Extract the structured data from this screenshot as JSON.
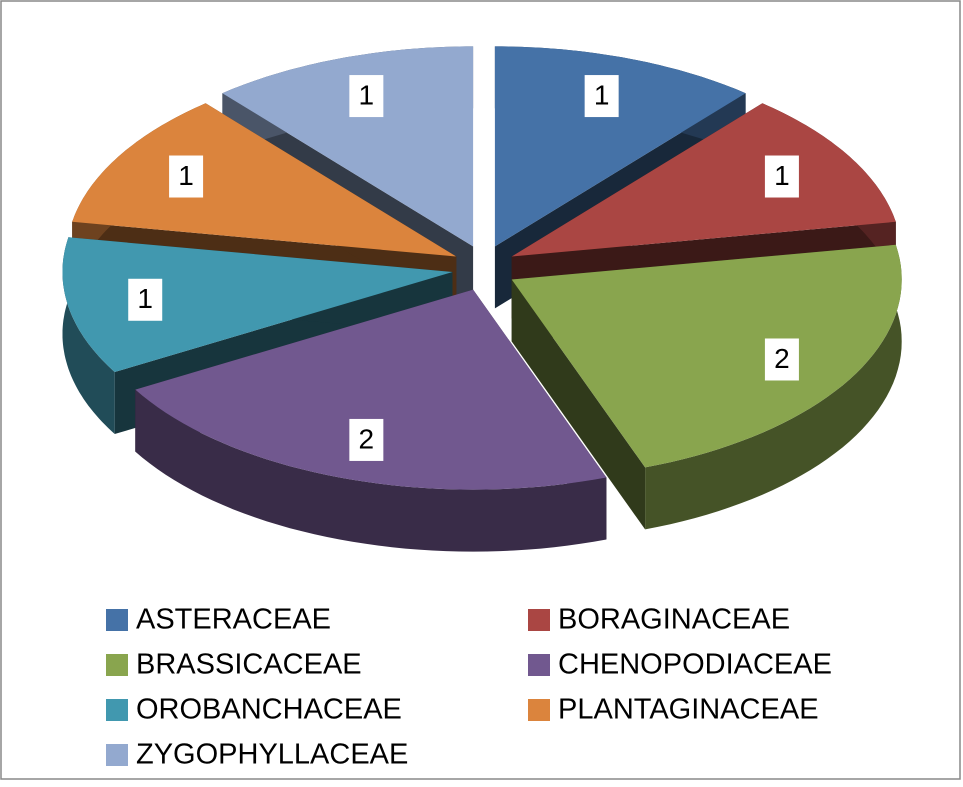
{
  "chart_data": {
    "type": "pie",
    "three_d": true,
    "exploded": true,
    "categories": [
      "ASTERACEAE",
      "BORAGINACEAE",
      "BRASSICACEAE",
      "CHENOPODIACEAE",
      "OROBANCHACEAE",
      "PLANTAGINACEAE",
      "ZYGOPHYLLACEAE"
    ],
    "values": [
      1,
      1,
      2,
      2,
      1,
      1,
      1
    ],
    "colors": [
      "#4572a7",
      "#aa4643",
      "#89a54e",
      "#71588f",
      "#4198af",
      "#db843d",
      "#93a9cf"
    ],
    "legend": "bottom"
  }
}
